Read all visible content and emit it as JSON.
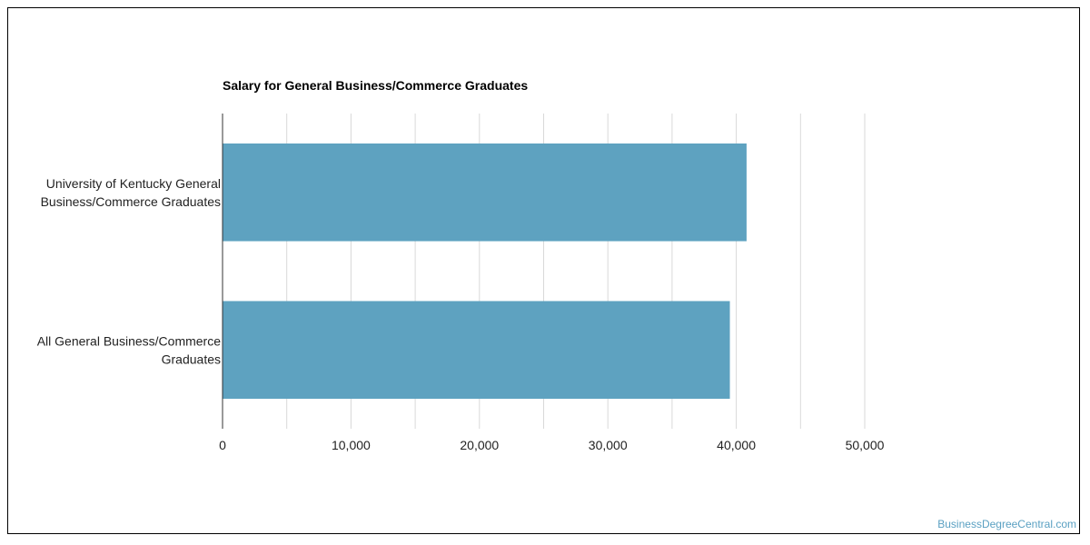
{
  "chart_data": {
    "type": "bar",
    "orientation": "horizontal",
    "title": "Salary for General Business/Commerce Graduates",
    "xlabel": "",
    "ylabel": "",
    "categories": [
      "University of Kentucky General Business/Commerce Graduates",
      "All General Business/Commerce Graduates"
    ],
    "category_label_lines": [
      [
        "University of Kentucky General",
        "Business/Commerce Graduates"
      ],
      [
        "All General Business/Commerce",
        "Graduates"
      ]
    ],
    "values": [
      40800,
      39500
    ],
    "xlim": [
      0,
      50000
    ],
    "x_ticks": [
      0,
      10000,
      20000,
      30000,
      40000,
      50000
    ],
    "x_tick_labels": [
      "0",
      "10,000",
      "20,000",
      "30,000",
      "40,000",
      "50,000"
    ],
    "grid": true,
    "legend": "none",
    "bar_color": "#5ea2c0"
  },
  "watermark": "BusinessDegreeCentral.com",
  "colors": {
    "bar": "#5ea2c0",
    "grid": "#d9d9d9",
    "axis": "#333333",
    "text": "#222222",
    "watermark": "#5aa0c2"
  }
}
